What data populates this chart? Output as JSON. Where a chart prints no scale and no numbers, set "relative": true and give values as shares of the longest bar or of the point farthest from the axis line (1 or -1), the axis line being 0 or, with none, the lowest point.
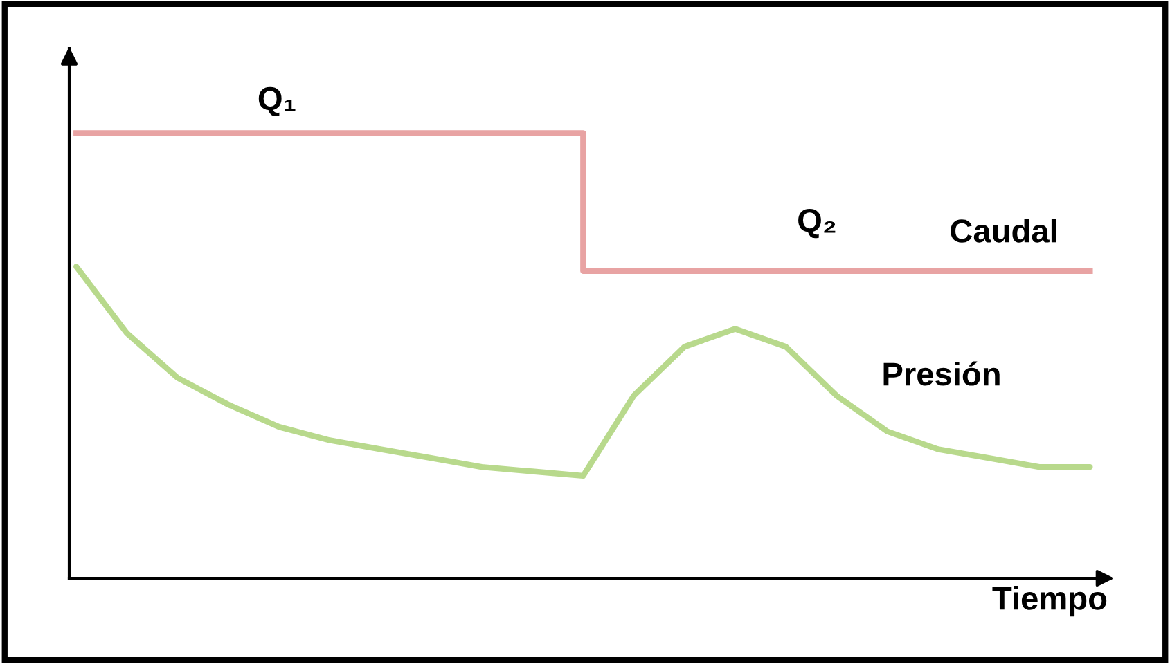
{
  "chart_data": {
    "type": "line",
    "relative": true,
    "xlabel": "Tiempo",
    "categories": [
      null,
      null,
      null,
      null,
      null,
      null,
      null,
      null,
      null,
      null,
      null,
      null,
      null,
      null,
      null,
      null,
      null,
      null,
      null,
      null,
      null
    ],
    "series": [
      {
        "name": "Caudal",
        "type": "step",
        "color": "#e8a3a3",
        "values": [
          1,
          1,
          1,
          1,
          1,
          1,
          1,
          1,
          1,
          1,
          0.69,
          0.69,
          0.69,
          0.69,
          0.69,
          0.69,
          0.69,
          0.69,
          0.69,
          0.69,
          0.69
        ]
      },
      {
        "name": "Presión",
        "type": "line",
        "color": "#b8d98c",
        "values": [
          0.7,
          0.55,
          0.45,
          0.39,
          0.34,
          0.31,
          0.29,
          0.27,
          0.25,
          0.24,
          0.23,
          0.41,
          0.52,
          0.56,
          0.52,
          0.41,
          0.33,
          0.29,
          0.27,
          0.25,
          0.25
        ]
      }
    ],
    "annotations": [
      "Q₁",
      "Q₂"
    ],
    "legend": false
  }
}
